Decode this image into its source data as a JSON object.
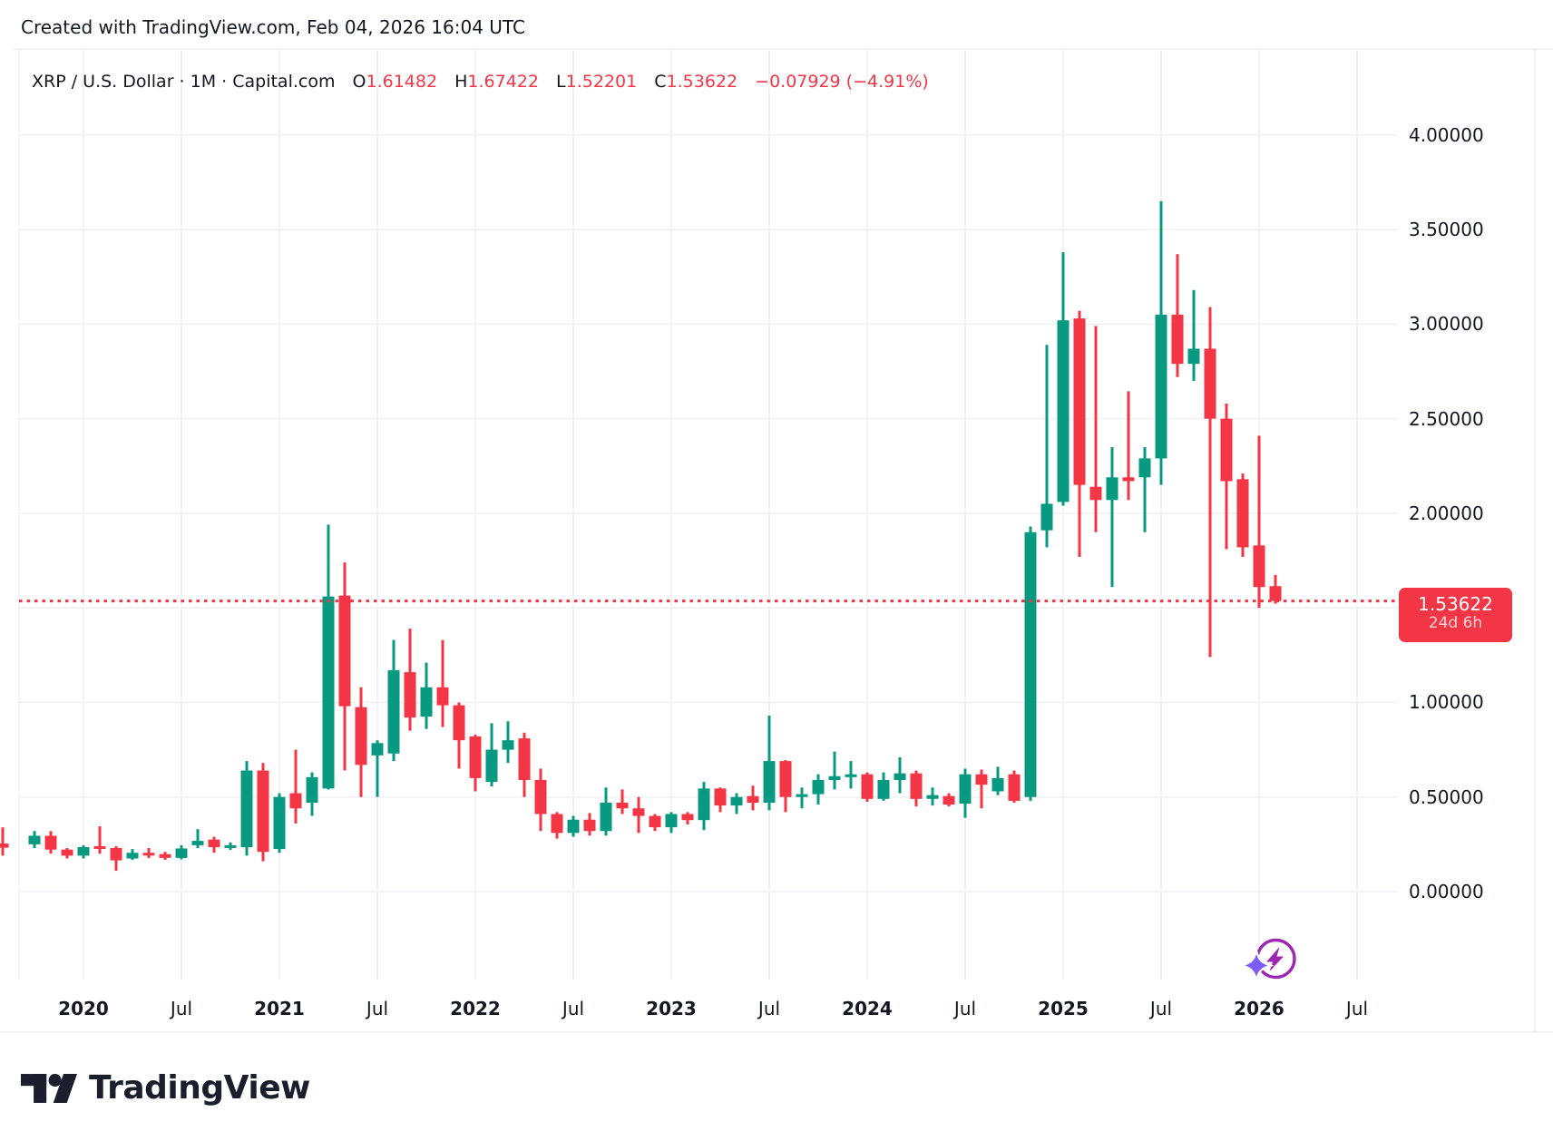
{
  "header": {
    "attribution": "Created with TradingView.com, Feb 04, 2026 16:04 UTC",
    "symbol": "XRP / U.S. Dollar · 1M · Capital.com",
    "ohlc": {
      "o_label": "O",
      "o": "1.61482",
      "h_label": "H",
      "h": "1.67422",
      "l_label": "L",
      "l": "1.52201",
      "c_label": "C",
      "c": "1.53622",
      "change": "−0.07929 (−4.91%)"
    }
  },
  "last_price_label": {
    "price": "1.53622",
    "countdown": "24d 6h"
  },
  "logo": {
    "text": "TradingView"
  },
  "colors": {
    "up": "#089981",
    "down": "#f23645",
    "grid": "#f0f1f3",
    "frame": "#eceef2",
    "text": "#131722",
    "label_bg": "#f23645",
    "icon_purple": "#9c27b0",
    "icon_violet": "#7c5cfc"
  },
  "chart_data": {
    "type": "candlestick",
    "title": "XRP / U.S. Dollar · 1M · Capital.com",
    "ylim": [
      -0.45,
      4.45
    ],
    "grid": true,
    "last_price": 1.53622,
    "y_axis": {
      "ticks": [
        {
          "price": 4.0,
          "label": "4.00000"
        },
        {
          "price": 3.5,
          "label": "3.50000"
        },
        {
          "price": 3.0,
          "label": "3.00000"
        },
        {
          "price": 2.5,
          "label": "2.50000"
        },
        {
          "price": 2.0,
          "label": "2.00000"
        },
        {
          "price": 1.5,
          "label": "1.50000"
        },
        {
          "price": 1.0,
          "label": "1.00000"
        },
        {
          "price": 0.5,
          "label": "0.50000"
        },
        {
          "price": 0.0,
          "label": "0.00000"
        }
      ]
    },
    "x_axis": {
      "ticks": [
        {
          "month": "2020-01",
          "label": "2020"
        },
        {
          "month": "2020-07",
          "label": "Jul"
        },
        {
          "month": "2021-01",
          "label": "2021"
        },
        {
          "month": "2021-07",
          "label": "Jul"
        },
        {
          "month": "2022-01",
          "label": "2022"
        },
        {
          "month": "2022-07",
          "label": "Jul"
        },
        {
          "month": "2023-01",
          "label": "2023"
        },
        {
          "month": "2023-07",
          "label": "Jul"
        },
        {
          "month": "2024-01",
          "label": "2024"
        },
        {
          "month": "2024-07",
          "label": "Jul"
        },
        {
          "month": "2025-01",
          "label": "2025"
        },
        {
          "month": "2025-07",
          "label": "Jul"
        },
        {
          "month": "2026-01",
          "label": "2026"
        },
        {
          "month": "2026-07",
          "label": "Jul"
        }
      ]
    },
    "candles": [
      {
        "t": "2019-09",
        "o": 0.254,
        "h": 0.34,
        "l": 0.19,
        "c": 0.232
      },
      {
        "t": "2019-10",
        "o": 0.25,
        "h": 0.32,
        "l": 0.23,
        "c": 0.295
      },
      {
        "t": "2019-11",
        "o": 0.295,
        "h": 0.32,
        "l": 0.2,
        "c": 0.222
      },
      {
        "t": "2019-12",
        "o": 0.222,
        "h": 0.23,
        "l": 0.175,
        "c": 0.19
      },
      {
        "t": "2020-01",
        "o": 0.19,
        "h": 0.245,
        "l": 0.175,
        "c": 0.235
      },
      {
        "t": "2020-02",
        "o": 0.24,
        "h": 0.345,
        "l": 0.2,
        "c": 0.23
      },
      {
        "t": "2020-03",
        "o": 0.23,
        "h": 0.24,
        "l": 0.11,
        "c": 0.165
      },
      {
        "t": "2020-04",
        "o": 0.175,
        "h": 0.225,
        "l": 0.168,
        "c": 0.205
      },
      {
        "t": "2020-05",
        "o": 0.205,
        "h": 0.23,
        "l": 0.177,
        "c": 0.198
      },
      {
        "t": "2020-06",
        "o": 0.198,
        "h": 0.21,
        "l": 0.168,
        "c": 0.178
      },
      {
        "t": "2020-07",
        "o": 0.178,
        "h": 0.245,
        "l": 0.17,
        "c": 0.228
      },
      {
        "t": "2020-08",
        "o": 0.245,
        "h": 0.33,
        "l": 0.23,
        "c": 0.268
      },
      {
        "t": "2020-09",
        "o": 0.275,
        "h": 0.29,
        "l": 0.205,
        "c": 0.235
      },
      {
        "t": "2020-10",
        "o": 0.235,
        "h": 0.26,
        "l": 0.22,
        "c": 0.245
      },
      {
        "t": "2020-11",
        "o": 0.235,
        "h": 0.69,
        "l": 0.19,
        "c": 0.64
      },
      {
        "t": "2020-12",
        "o": 0.64,
        "h": 0.68,
        "l": 0.16,
        "c": 0.21
      },
      {
        "t": "2021-01",
        "o": 0.225,
        "h": 0.52,
        "l": 0.205,
        "c": 0.5
      },
      {
        "t": "2021-02",
        "o": 0.52,
        "h": 0.75,
        "l": 0.36,
        "c": 0.44
      },
      {
        "t": "2021-03",
        "o": 0.47,
        "h": 0.63,
        "l": 0.4,
        "c": 0.605
      },
      {
        "t": "2021-04",
        "o": 0.545,
        "h": 1.94,
        "l": 0.54,
        "c": 1.56
      },
      {
        "t": "2021-05",
        "o": 1.565,
        "h": 1.74,
        "l": 0.64,
        "c": 0.98
      },
      {
        "t": "2021-06",
        "o": 0.975,
        "h": 1.08,
        "l": 0.5,
        "c": 0.67
      },
      {
        "t": "2021-07",
        "o": 0.72,
        "h": 0.8,
        "l": 0.5,
        "c": 0.785
      },
      {
        "t": "2021-08",
        "o": 0.73,
        "h": 1.33,
        "l": 0.69,
        "c": 1.17
      },
      {
        "t": "2021-09",
        "o": 1.16,
        "h": 1.39,
        "l": 0.85,
        "c": 0.92
      },
      {
        "t": "2021-10",
        "o": 0.925,
        "h": 1.21,
        "l": 0.86,
        "c": 1.08
      },
      {
        "t": "2021-11",
        "o": 1.08,
        "h": 1.33,
        "l": 0.87,
        "c": 0.985
      },
      {
        "t": "2021-12",
        "o": 0.985,
        "h": 1.0,
        "l": 0.65,
        "c": 0.8
      },
      {
        "t": "2022-01",
        "o": 0.82,
        "h": 0.83,
        "l": 0.53,
        "c": 0.6
      },
      {
        "t": "2022-02",
        "o": 0.58,
        "h": 0.89,
        "l": 0.556,
        "c": 0.75
      },
      {
        "t": "2022-03",
        "o": 0.75,
        "h": 0.9,
        "l": 0.68,
        "c": 0.8
      },
      {
        "t": "2022-04",
        "o": 0.81,
        "h": 0.84,
        "l": 0.5,
        "c": 0.59
      },
      {
        "t": "2022-05",
        "o": 0.59,
        "h": 0.65,
        "l": 0.32,
        "c": 0.41
      },
      {
        "t": "2022-06",
        "o": 0.41,
        "h": 0.42,
        "l": 0.28,
        "c": 0.31
      },
      {
        "t": "2022-07",
        "o": 0.31,
        "h": 0.4,
        "l": 0.29,
        "c": 0.38
      },
      {
        "t": "2022-08",
        "o": 0.38,
        "h": 0.415,
        "l": 0.296,
        "c": 0.32
      },
      {
        "t": "2022-09",
        "o": 0.32,
        "h": 0.55,
        "l": 0.296,
        "c": 0.47
      },
      {
        "t": "2022-10",
        "o": 0.47,
        "h": 0.54,
        "l": 0.41,
        "c": 0.44
      },
      {
        "t": "2022-11",
        "o": 0.44,
        "h": 0.5,
        "l": 0.31,
        "c": 0.4
      },
      {
        "t": "2022-12",
        "o": 0.4,
        "h": 0.41,
        "l": 0.32,
        "c": 0.34
      },
      {
        "t": "2023-01",
        "o": 0.34,
        "h": 0.42,
        "l": 0.31,
        "c": 0.41
      },
      {
        "t": "2023-02",
        "o": 0.41,
        "h": 0.42,
        "l": 0.355,
        "c": 0.378
      },
      {
        "t": "2023-03",
        "o": 0.378,
        "h": 0.58,
        "l": 0.325,
        "c": 0.545
      },
      {
        "t": "2023-04",
        "o": 0.545,
        "h": 0.55,
        "l": 0.42,
        "c": 0.455
      },
      {
        "t": "2023-05",
        "o": 0.455,
        "h": 0.52,
        "l": 0.41,
        "c": 0.5
      },
      {
        "t": "2023-06",
        "o": 0.505,
        "h": 0.56,
        "l": 0.43,
        "c": 0.47
      },
      {
        "t": "2023-07",
        "o": 0.47,
        "h": 0.93,
        "l": 0.43,
        "c": 0.69
      },
      {
        "t": "2023-08",
        "o": 0.69,
        "h": 0.695,
        "l": 0.42,
        "c": 0.5
      },
      {
        "t": "2023-09",
        "o": 0.5,
        "h": 0.55,
        "l": 0.44,
        "c": 0.515
      },
      {
        "t": "2023-10",
        "o": 0.515,
        "h": 0.62,
        "l": 0.46,
        "c": 0.59
      },
      {
        "t": "2023-11",
        "o": 0.59,
        "h": 0.74,
        "l": 0.54,
        "c": 0.61
      },
      {
        "t": "2023-12",
        "o": 0.605,
        "h": 0.69,
        "l": 0.545,
        "c": 0.62
      },
      {
        "t": "2024-01",
        "o": 0.62,
        "h": 0.63,
        "l": 0.475,
        "c": 0.49
      },
      {
        "t": "2024-02",
        "o": 0.49,
        "h": 0.63,
        "l": 0.48,
        "c": 0.59
      },
      {
        "t": "2024-03",
        "o": 0.59,
        "h": 0.71,
        "l": 0.52,
        "c": 0.625
      },
      {
        "t": "2024-04",
        "o": 0.625,
        "h": 0.64,
        "l": 0.45,
        "c": 0.49
      },
      {
        "t": "2024-05",
        "o": 0.49,
        "h": 0.55,
        "l": 0.455,
        "c": 0.51
      },
      {
        "t": "2024-06",
        "o": 0.505,
        "h": 0.52,
        "l": 0.45,
        "c": 0.46
      },
      {
        "t": "2024-07",
        "o": 0.465,
        "h": 0.65,
        "l": 0.39,
        "c": 0.62
      },
      {
        "t": "2024-08",
        "o": 0.62,
        "h": 0.645,
        "l": 0.44,
        "c": 0.565
      },
      {
        "t": "2024-09",
        "o": 0.53,
        "h": 0.66,
        "l": 0.51,
        "c": 0.6
      },
      {
        "t": "2024-10",
        "o": 0.62,
        "h": 0.64,
        "l": 0.47,
        "c": 0.48
      },
      {
        "t": "2024-11",
        "o": 0.5,
        "h": 1.93,
        "l": 0.48,
        "c": 1.9
      },
      {
        "t": "2024-12",
        "o": 1.91,
        "h": 2.89,
        "l": 1.82,
        "c": 2.05
      },
      {
        "t": "2025-01",
        "o": 2.06,
        "h": 3.38,
        "l": 2.04,
        "c": 3.02
      },
      {
        "t": "2025-02",
        "o": 3.03,
        "h": 3.07,
        "l": 1.77,
        "c": 2.15
      },
      {
        "t": "2025-03",
        "o": 2.14,
        "h": 2.99,
        "l": 1.9,
        "c": 2.07
      },
      {
        "t": "2025-04",
        "o": 2.07,
        "h": 2.35,
        "l": 1.61,
        "c": 2.19
      },
      {
        "t": "2025-05",
        "o": 2.19,
        "h": 2.645,
        "l": 2.07,
        "c": 2.17
      },
      {
        "t": "2025-06",
        "o": 2.19,
        "h": 2.35,
        "l": 1.9,
        "c": 2.29
      },
      {
        "t": "2025-07",
        "o": 2.29,
        "h": 3.65,
        "l": 2.15,
        "c": 3.05
      },
      {
        "t": "2025-08",
        "o": 3.05,
        "h": 3.37,
        "l": 2.72,
        "c": 2.79
      },
      {
        "t": "2025-09",
        "o": 2.79,
        "h": 3.18,
        "l": 2.7,
        "c": 2.87
      },
      {
        "t": "2025-10",
        "o": 2.87,
        "h": 3.09,
        "l": 1.24,
        "c": 2.5
      },
      {
        "t": "2025-11",
        "o": 2.5,
        "h": 2.58,
        "l": 1.81,
        "c": 2.17
      },
      {
        "t": "2025-12",
        "o": 2.18,
        "h": 2.21,
        "l": 1.77,
        "c": 1.82
      },
      {
        "t": "2026-01",
        "o": 1.83,
        "h": 2.41,
        "l": 1.5,
        "c": 1.61
      },
      {
        "t": "2026-02",
        "o": 1.61482,
        "h": 1.67422,
        "l": 1.52201,
        "c": 1.53622
      }
    ]
  }
}
